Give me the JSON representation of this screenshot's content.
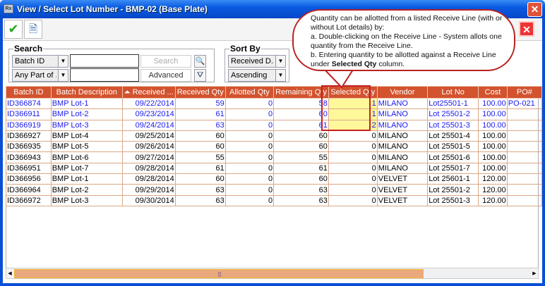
{
  "window": {
    "title": "View / Select Lot Number - BMP-02 (Base Plate)",
    "app_icon": "app-icon",
    "close_icon": "close-icon"
  },
  "toolbar": {
    "ok_icon": "checkmark-icon",
    "view_icon": "document-view-icon",
    "close_icon": "close-icon"
  },
  "search": {
    "label": "Search",
    "field_combo": "Batch ID",
    "match_combo": "Any Part of ...",
    "input1": "",
    "input2": "",
    "search_button": "Search",
    "advanced_button": "Advanced"
  },
  "sort": {
    "label": "Sort By",
    "field": "Received D...",
    "order": "Ascending"
  },
  "callout": {
    "line1": "Quantity can be allotted from a listed Receive Line (with or without Lot details) by:",
    "line2": "a. Double-clicking on the Receive Line - System allots one quantity from the Receive Line.",
    "line3a": "b. Entering quantity to be allotted against a Receive Line under ",
    "line3b": "Selected Qty",
    "line3c": " column."
  },
  "colors": {
    "header": "#d2532e",
    "selected_text": "#1a1aee",
    "selected_qty_bg": "#fff89a",
    "highlight_border": "#c62020"
  },
  "table": {
    "columns": [
      "Batch ID",
      "Batch Description",
      "Received ...",
      "Received Qty",
      "Allotted Qty",
      "Remaining Qty",
      "Selected Qty",
      "Vendor",
      "Lot No",
      "Cost",
      "PO#"
    ],
    "sort_icon": "sort-ascending-icon",
    "rows": [
      {
        "selected": true,
        "cells": [
          "ID366874",
          "BMP Lot-1",
          "09/22/2014",
          "59",
          "0",
          "58",
          "1",
          "MILANO",
          "Lot25501-1",
          "100.00",
          "PO-021"
        ]
      },
      {
        "selected": true,
        "cells": [
          "ID366911",
          "BMP Lot-2",
          "09/23/2014",
          "61",
          "0",
          "60",
          "1",
          "MILANO",
          "Lot 25501-2",
          "100.00",
          ""
        ]
      },
      {
        "selected": true,
        "cells": [
          "ID366919",
          "BMP Lot-3",
          "09/24/2014",
          "63",
          "0",
          "61",
          "2",
          "MILANO",
          "Lot 25501-3",
          "100.00",
          ""
        ]
      },
      {
        "selected": false,
        "cells": [
          "ID366927",
          "BMP Lot-4",
          "09/25/2014",
          "60",
          "0",
          "60",
          "0",
          "MILANO",
          "Lot 25501-4",
          "100.00",
          ""
        ]
      },
      {
        "selected": false,
        "cells": [
          "ID366935",
          "BMP Lot-5",
          "09/26/2014",
          "60",
          "0",
          "60",
          "0",
          "MILANO",
          "Lot 25501-5",
          "100.00",
          ""
        ]
      },
      {
        "selected": false,
        "cells": [
          "ID366943",
          "BMP Lot-6",
          "09/27/2014",
          "55",
          "0",
          "55",
          "0",
          "MILANO",
          "Lot 25501-6",
          "100.00",
          ""
        ]
      },
      {
        "selected": false,
        "cells": [
          "ID366951",
          "BMP Lot-7",
          "09/28/2014",
          "61",
          "0",
          "61",
          "0",
          "MILANO",
          "Lot 25501-7",
          "100.00",
          ""
        ]
      },
      {
        "selected": false,
        "cells": [
          "ID366956",
          "BMP Lot-1",
          "09/28/2014",
          "60",
          "0",
          "60",
          "0",
          "VELVET",
          "Lot 25601-1",
          "120.00",
          ""
        ]
      },
      {
        "selected": false,
        "cells": [
          "ID366964",
          "BMP Lot-2",
          "09/29/2014",
          "63",
          "0",
          "63",
          "0",
          "VELVET",
          "Lot 25501-2",
          "120.00",
          ""
        ]
      },
      {
        "selected": false,
        "cells": [
          "ID366972",
          "BMP Lot-3",
          "09/30/2014",
          "63",
          "0",
          "63",
          "0",
          "VELVET",
          "Lot 25501-3",
          "120.00",
          ""
        ]
      }
    ]
  }
}
